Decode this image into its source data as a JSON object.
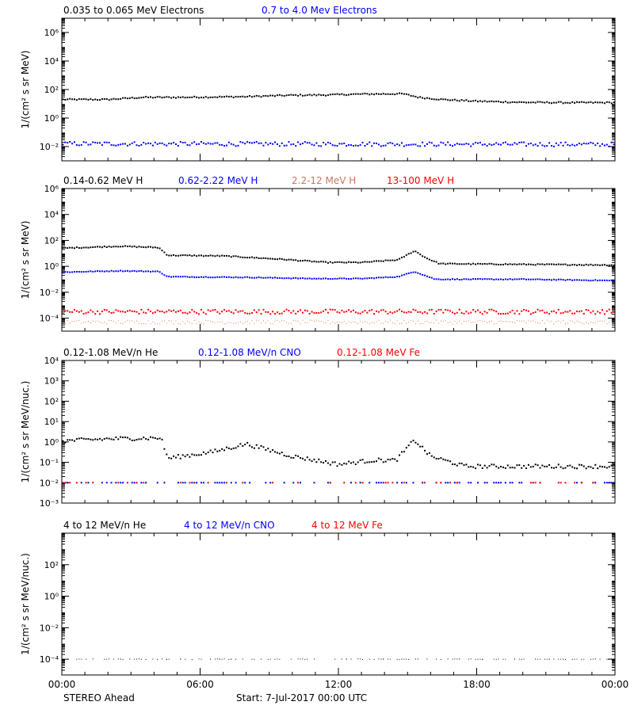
{
  "chart_data": {
    "type": "scatter",
    "x_axis": {
      "tick_labels": [
        "00:00",
        "06:00",
        "12:00",
        "18:00",
        "00:00"
      ],
      "range_hours": [
        0,
        24
      ]
    },
    "footer": {
      "left": "STEREO Ahead",
      "right": "Start:  7-Jul-2017 00:00 UTC"
    },
    "colors": {
      "black": "#000000",
      "blue": "#0000ff",
      "salmon": "#c87860",
      "red": "#ff0000"
    },
    "panels": [
      {
        "ylabel": "1/(cm² s sr MeV)",
        "log_range": [
          -3,
          7
        ],
        "ticks": [
          {
            "exp": 6,
            "label": "10⁶"
          },
          {
            "exp": 4,
            "label": "10⁴"
          },
          {
            "exp": 2,
            "label": "10²"
          },
          {
            "exp": 0,
            "label": "10⁰"
          },
          {
            "exp": -2,
            "label": "10⁻²"
          }
        ],
        "legend": [
          {
            "label": "0.035 to 0.065 MeV Electrons",
            "color": "#000000"
          },
          {
            "label": "0.7 to 4.0 Mev Electrons",
            "color": "#0000ff"
          }
        ],
        "series": [
          {
            "color": "#000000",
            "dot": 2,
            "jitter": 0.05,
            "points": [
              [
                0,
                1.3
              ],
              [
                2,
                1.3
              ],
              [
                3.5,
                1.45
              ],
              [
                5,
                1.45
              ],
              [
                8,
                1.5
              ],
              [
                10,
                1.6
              ],
              [
                11.5,
                1.62
              ],
              [
                13,
                1.68
              ],
              [
                14.8,
                1.7
              ],
              [
                15.5,
                1.45
              ],
              [
                16.5,
                1.3
              ],
              [
                18,
                1.18
              ],
              [
                20,
                1.1
              ],
              [
                22,
                1.08
              ],
              [
                24,
                1.08
              ]
            ]
          },
          {
            "color": "#0000ff",
            "dot": 2,
            "jitter": 0.15,
            "points": [
              [
                0,
                -1.8
              ],
              [
                24,
                -1.85
              ]
            ]
          }
        ]
      },
      {
        "ylabel": "1/(cm² s sr MeV)",
        "log_range": [
          -5,
          6
        ],
        "ticks": [
          {
            "exp": 6,
            "label": "10⁶"
          },
          {
            "exp": 4,
            "label": "10⁴"
          },
          {
            "exp": 2,
            "label": "10²"
          },
          {
            "exp": 0,
            "label": "10⁰"
          },
          {
            "exp": -2,
            "label": "10⁻²"
          },
          {
            "exp": -4,
            "label": "10⁻⁴"
          }
        ],
        "legend": [
          {
            "label": "0.14-0.62 MeV H",
            "color": "#000000"
          },
          {
            "label": "0.62-2.22 MeV H",
            "color": "#0000ff"
          },
          {
            "label": "2.2-12 MeV H",
            "color": "#c87860"
          },
          {
            "label": "13-100 MeV H",
            "color": "#ff0000"
          }
        ],
        "series": [
          {
            "color": "#000000",
            "dot": 2,
            "jitter": 0.04,
            "points": [
              [
                0,
                1.4
              ],
              [
                2.5,
                1.55
              ],
              [
                4.2,
                1.45
              ],
              [
                4.6,
                0.85
              ],
              [
                7,
                0.8
              ],
              [
                9.5,
                0.55
              ],
              [
                11.5,
                0.3
              ],
              [
                13,
                0.3
              ],
              [
                14.6,
                0.5
              ],
              [
                15.3,
                1.2
              ],
              [
                15.8,
                0.65
              ],
              [
                16.4,
                0.2
              ],
              [
                20,
                0.15
              ],
              [
                24,
                0.1
              ]
            ]
          },
          {
            "color": "#0000ff",
            "dot": 2,
            "jitter": 0.03,
            "points": [
              [
                0,
                -0.45
              ],
              [
                2.5,
                -0.35
              ],
              [
                4.2,
                -0.4
              ],
              [
                4.6,
                -0.8
              ],
              [
                8,
                -0.85
              ],
              [
                11,
                -0.95
              ],
              [
                13,
                -0.95
              ],
              [
                14.6,
                -0.8
              ],
              [
                15.3,
                -0.4
              ],
              [
                16.2,
                -1.0
              ],
              [
                20,
                -1.0
              ],
              [
                24,
                -1.1
              ]
            ]
          },
          {
            "color": "#ff0000",
            "dot": 2,
            "jitter": 0.18,
            "points": [
              [
                0,
                -3.5
              ],
              [
                24,
                -3.5
              ]
            ]
          },
          {
            "color": "#c87860",
            "dot": 1,
            "jitter": 0.15,
            "points": [
              [
                0,
                -4.3
              ],
              [
                24,
                -4.3
              ]
            ]
          }
        ]
      },
      {
        "ylabel": "1/(cm² s sr MeV/nuc.)",
        "log_range": [
          -3,
          4
        ],
        "ticks": [
          {
            "exp": 4,
            "label": "10⁴"
          },
          {
            "exp": 3,
            "label": "10³"
          },
          {
            "exp": 2,
            "label": "10²"
          },
          {
            "exp": 1,
            "label": "10¹"
          },
          {
            "exp": 0,
            "label": "10⁰"
          },
          {
            "exp": -1,
            "label": "10⁻¹"
          },
          {
            "exp": -2,
            "label": "10⁻²"
          },
          {
            "exp": -3,
            "label": "10⁻³"
          }
        ],
        "legend": [
          {
            "label": "0.12-1.08 MeV/n He",
            "color": "#000000"
          },
          {
            "label": "0.12-1.08 MeV/n CNO",
            "color": "#0000ff"
          },
          {
            "label": "0.12-1.08 MeV Fe",
            "color": "#ff0000"
          }
        ],
        "series": [
          {
            "color": "#000000",
            "dot": 2,
            "jitter": 0.1,
            "points": [
              [
                0,
                0.05
              ],
              [
                2,
                0.15
              ],
              [
                4.3,
                0.2
              ],
              [
                4.6,
                -0.8
              ],
              [
                6.5,
                -0.5
              ],
              [
                8,
                -0.1
              ],
              [
                10,
                -0.7
              ],
              [
                12,
                -1.1
              ],
              [
                13.5,
                -0.9
              ],
              [
                14.5,
                -0.9
              ],
              [
                15.3,
                0.1
              ],
              [
                16,
                -0.7
              ],
              [
                17.5,
                -1.2
              ],
              [
                24,
                -1.2
              ]
            ]
          },
          {
            "color": "#0000ff",
            "dot": 2,
            "jitter": 0.0,
            "sparse": 0.35,
            "points": [
              [
                0,
                -2.0
              ],
              [
                24,
                -2.0
              ]
            ]
          },
          {
            "color": "#ff0000",
            "dot": 2,
            "jitter": 0.0,
            "sparse": 0.12,
            "points": [
              [
                0,
                -2.0
              ],
              [
                24,
                -2.0
              ]
            ]
          }
        ]
      },
      {
        "ylabel": "1/(cm² s sr MeV/nuc.)",
        "log_range": [
          -5,
          4
        ],
        "ticks": [
          {
            "exp": 2,
            "label": "10²"
          },
          {
            "exp": 0,
            "label": "10⁰"
          },
          {
            "exp": -2,
            "label": "10⁻²"
          },
          {
            "exp": -4,
            "label": "10⁻⁴"
          }
        ],
        "legend": [
          {
            "label": "4 to 12 MeV/n He",
            "color": "#000000"
          },
          {
            "label": "4 to 12 MeV/n CNO",
            "color": "#0000ff"
          },
          {
            "label": "4 to 12 MeV Fe",
            "color": "#ff0000"
          }
        ],
        "series": [
          {
            "color": "#000000",
            "dot": 1,
            "jitter": 0.02,
            "sparse": 0.45,
            "points": [
              [
                0,
                -4.0
              ],
              [
                24,
                -4.0
              ]
            ]
          },
          {
            "color": "#0000ff",
            "dot": 1,
            "jitter": 0.0,
            "sparse": 0.12,
            "points": [
              [
                0,
                -4.0
              ],
              [
                24,
                -4.0
              ]
            ]
          }
        ]
      }
    ]
  }
}
